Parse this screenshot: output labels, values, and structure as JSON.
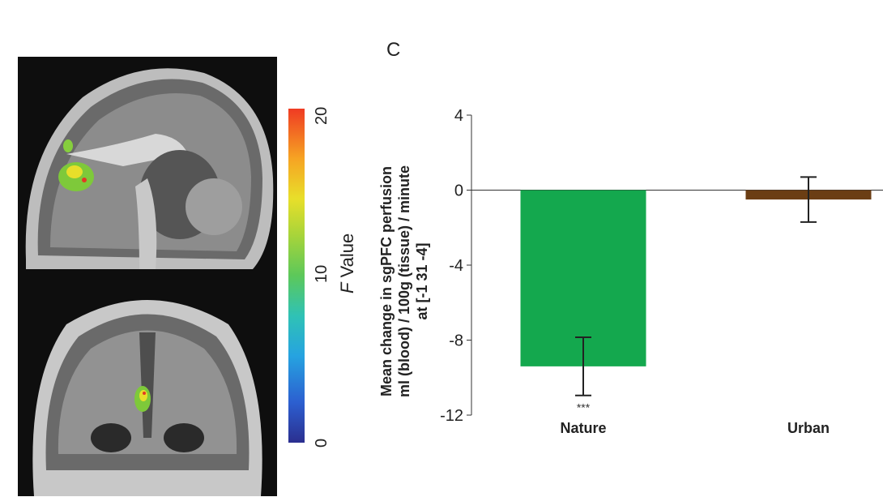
{
  "panel_letter": "C",
  "colorbar": {
    "label_italic": "F",
    "label_rest": " Value",
    "ticks": [
      "0",
      "10",
      "20"
    ],
    "min": 0,
    "max": 20
  },
  "chart_data": {
    "type": "bar",
    "categories": [
      "Nature",
      "Urban"
    ],
    "values": [
      -9.4,
      -0.5
    ],
    "errors": [
      1.55,
      1.2
    ],
    "colors": [
      "#14a84e",
      "#6b3e14"
    ],
    "significance": [
      "***",
      ""
    ],
    "ylim": [
      -12,
      4
    ],
    "yticks": [
      "4",
      "0",
      "-4",
      "-8",
      "-12"
    ],
    "ylabel_lines": [
      "Mean change in sgPFC perfusion",
      "ml (blood) / 100g (tissue) / minute",
      "at [-1 31 -4]"
    ],
    "xlabel": "",
    "title": ""
  }
}
